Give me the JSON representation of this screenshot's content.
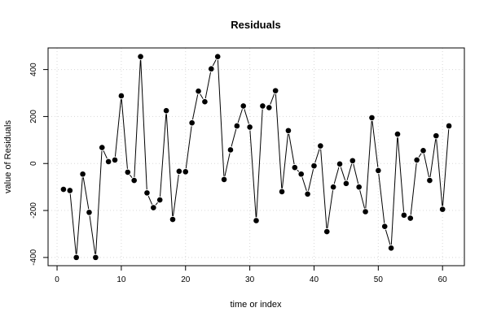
{
  "chart_data": {
    "type": "line",
    "title": "Residuals",
    "xlabel": "time or index",
    "ylabel": "value of Residuals",
    "xlim": [
      -1.4,
      63.4
    ],
    "ylim": [
      -435,
      492
    ],
    "xticks": [
      0,
      10,
      20,
      30,
      40,
      50,
      60
    ],
    "yticks": [
      -400,
      -200,
      0,
      200,
      400
    ],
    "grid": true,
    "markers": "filled-circle",
    "series": [
      {
        "x": [
          1,
          2,
          3,
          4,
          5,
          6,
          7,
          8,
          9,
          10,
          11,
          12,
          13,
          14,
          15,
          16,
          17,
          18,
          19,
          20,
          21,
          22,
          23,
          24,
          25,
          26,
          27,
          28,
          29,
          30,
          31,
          32,
          33,
          34,
          35,
          36,
          37,
          38,
          39,
          40,
          41,
          42,
          43,
          44,
          45,
          46,
          47,
          48,
          49,
          50,
          51,
          52,
          53,
          54,
          55,
          56,
          57,
          58,
          59,
          60,
          61
        ],
        "values": [
          -110,
          -115,
          -400,
          -45,
          -208,
          -400,
          68,
          8,
          15,
          288,
          -37,
          -72,
          455,
          -125,
          -188,
          -155,
          225,
          -238,
          -33,
          -35,
          173,
          308,
          263,
          403,
          455,
          -68,
          58,
          160,
          245,
          155,
          -243,
          245,
          238,
          310,
          -120,
          140,
          -17,
          -45,
          -130,
          -10,
          75,
          -290,
          -100,
          -2,
          -85,
          12,
          -100,
          -205,
          195,
          -30,
          -268,
          -360,
          125,
          -220,
          -233,
          15,
          55,
          -72,
          118,
          -195,
          160
        ]
      }
    ]
  }
}
